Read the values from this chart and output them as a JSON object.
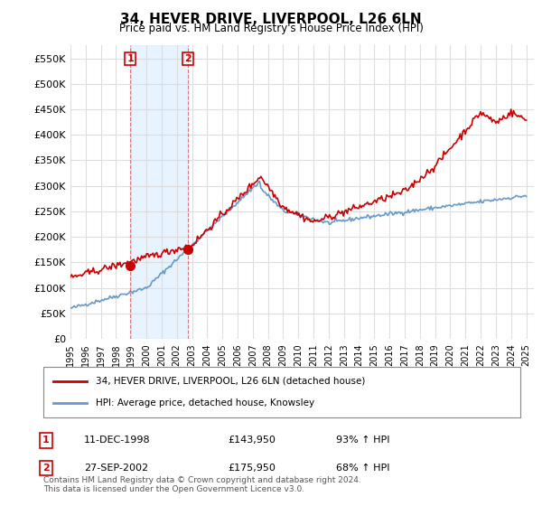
{
  "title": "34, HEVER DRIVE, LIVERPOOL, L26 6LN",
  "subtitle": "Price paid vs. HM Land Registry's House Price Index (HPI)",
  "ylabel_ticks": [
    "£0",
    "£50K",
    "£100K",
    "£150K",
    "£200K",
    "£250K",
    "£300K",
    "£350K",
    "£400K",
    "£450K",
    "£500K",
    "£550K"
  ],
  "ylim": [
    0,
    575000
  ],
  "yticks": [
    0,
    50000,
    100000,
    150000,
    200000,
    250000,
    300000,
    350000,
    400000,
    450000,
    500000,
    550000
  ],
  "sale1": {
    "date_num": 1998.94,
    "price": 143950,
    "label": "1"
  },
  "sale2": {
    "date_num": 2002.74,
    "price": 175950,
    "label": "2"
  },
  "legend_entries": [
    {
      "label": "34, HEVER DRIVE, LIVERPOOL, L26 6LN (detached house)",
      "color": "#cc0000"
    },
    {
      "label": "HPI: Average price, detached house, Knowsley",
      "color": "#6699cc"
    }
  ],
  "table_rows": [
    {
      "num": "1",
      "date": "11-DEC-1998",
      "price": "£143,950",
      "hpi": "93% ↑ HPI"
    },
    {
      "num": "2",
      "date": "27-SEP-2002",
      "price": "£175,950",
      "hpi": "68% ↑ HPI"
    }
  ],
  "footnote": "Contains HM Land Registry data © Crown copyright and database right 2024.\nThis data is licensed under the Open Government Licence v3.0.",
  "background_color": "#ffffff",
  "plot_bg_color": "#ffffff",
  "grid_color": "#dddddd",
  "shaded_region_color": "#ddeeff",
  "hpi_color": "#6699cc",
  "price_color": "#cc0000",
  "xmin": 1995.0,
  "xmax": 2025.5
}
